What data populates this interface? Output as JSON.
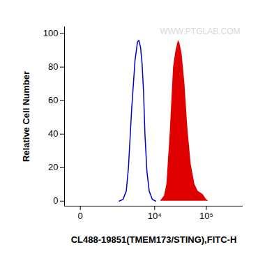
{
  "chart_data": {
    "type": "histogram",
    "x_label": "CL488-19851(TMEM173/STING),FITC-H",
    "y_label": "Relative Cell Number",
    "annotations": [
      "WWW.PTGLAB.COM"
    ],
    "log": "x",
    "xlim": [
      -400,
      500000
    ],
    "xticks": [
      0,
      {
        "value": 10000,
        "label": "10⁴"
      },
      {
        "value": 100000,
        "label": "10⁵"
      }
    ],
    "ylim": [
      -3,
      104
    ],
    "yticks": [
      0,
      20,
      40,
      60,
      80,
      100
    ],
    "grid": false,
    "series": [
      {
        "type": "line",
        "color": "#0000cc",
        "x": [
          1800,
          2200,
          2600,
          2900,
          3400,
          4000,
          4500,
          4800,
          5200,
          5600,
          6000,
          6400,
          7000,
          7800,
          9000,
          10500
        ],
        "values": [
          0,
          1,
          6,
          20,
          55,
          84,
          95,
          96,
          92,
          82,
          65,
          40,
          18,
          6,
          1,
          0
        ]
      },
      {
        "type": "area",
        "color": "#e00000",
        "x": [
          13000,
          15500,
          17300,
          20000,
          23300,
          26000,
          29000,
          31000,
          34000,
          38600,
          43500,
          50800,
          60000,
          69000,
          86000,
          100000,
          110000
        ],
        "values": [
          0,
          3,
          10,
          40,
          80,
          90,
          96,
          94,
          88,
          70,
          45,
          22,
          10,
          6,
          4,
          1,
          0
        ]
      }
    ]
  }
}
